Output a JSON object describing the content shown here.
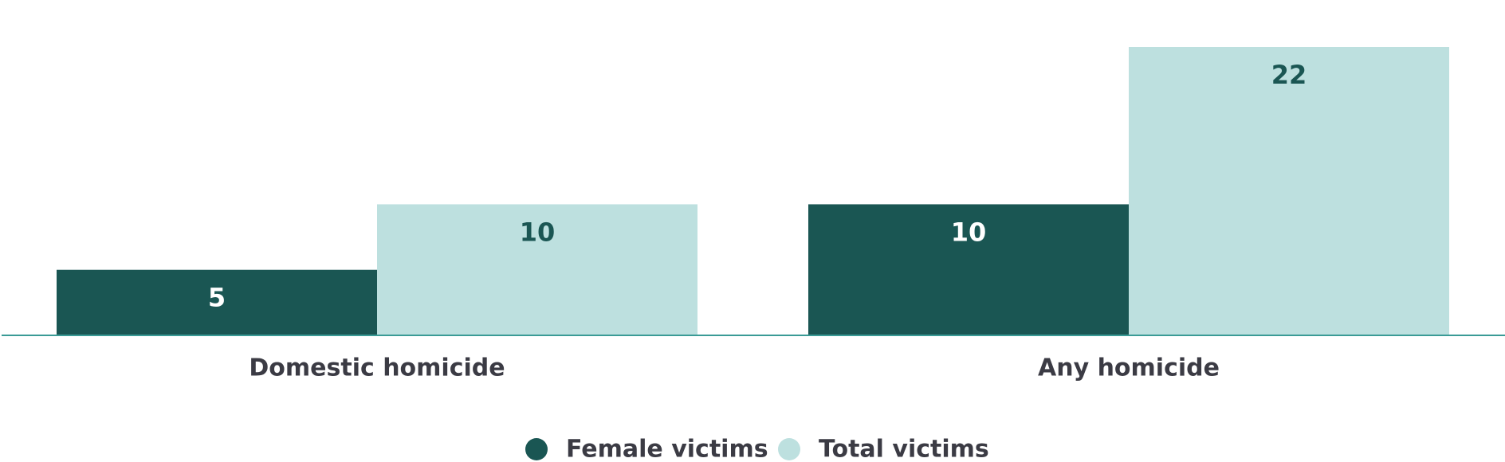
{
  "chart_data": {
    "type": "bar",
    "categories": [
      "Domestic homicide",
      "Any homicide"
    ],
    "series": [
      {
        "name": "Female victims",
        "color": "#1a5653",
        "label_color": "#ffffff",
        "values": [
          5,
          10
        ]
      },
      {
        "name": "Total victims",
        "color": "#bde0df",
        "label_color": "#1a5653",
        "values": [
          10,
          22
        ]
      }
    ],
    "axis_color": "#3a9b96",
    "text_color": "#3b3b44"
  }
}
